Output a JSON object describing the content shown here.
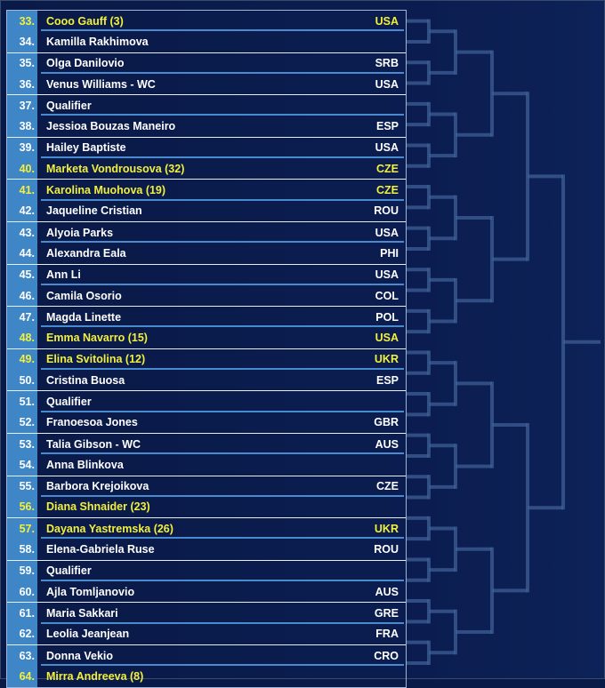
{
  "colors": {
    "background": "#0a1a48",
    "number_box": "#3f86c6",
    "seed_text": "#f2f03c",
    "bracket_line": "#3d5f94"
  },
  "rows": [
    {
      "num": "33.",
      "name": "Cooo Gauff (3)",
      "country": "USA",
      "seeded": true
    },
    {
      "num": "34.",
      "name": "Kamilla Rakhimova",
      "country": "",
      "seeded": false
    },
    {
      "num": "35.",
      "name": "Olga Danilovio",
      "country": "SRB",
      "seeded": false
    },
    {
      "num": "36.",
      "name": "Venus Williams - WC",
      "country": "USA",
      "seeded": false
    },
    {
      "num": "37.",
      "name": "Qualifier",
      "country": "",
      "seeded": false
    },
    {
      "num": "38.",
      "name": "Jessioa Bouzas Maneiro",
      "country": "ESP",
      "seeded": false
    },
    {
      "num": "39.",
      "name": "Hailey Baptiste",
      "country": "USA",
      "seeded": false
    },
    {
      "num": "40.",
      "name": "Marketa Vondrousova (32)",
      "country": "CZE",
      "seeded": true
    },
    {
      "num": "41.",
      "name": "Karolina Muohova (19)",
      "country": "CZE",
      "seeded": true
    },
    {
      "num": "42.",
      "name": "Jaqueline Cristian",
      "country": "ROU",
      "seeded": false
    },
    {
      "num": "43.",
      "name": "Alyoia Parks",
      "country": "USA",
      "seeded": false
    },
    {
      "num": "44.",
      "name": "Alexandra Eala",
      "country": "PHI",
      "seeded": false
    },
    {
      "num": "45.",
      "name": "Ann Li",
      "country": "USA",
      "seeded": false
    },
    {
      "num": "46.",
      "name": "Camila Osorio",
      "country": "COL",
      "seeded": false
    },
    {
      "num": "47.",
      "name": "Magda Linette",
      "country": "POL",
      "seeded": false
    },
    {
      "num": "48.",
      "name": "Emma Navarro (15)",
      "country": "USA",
      "seeded": true
    },
    {
      "num": "49.",
      "name": "Elina Svitolina (12)",
      "country": "UKR",
      "seeded": true
    },
    {
      "num": "50.",
      "name": "Cristina Buosa",
      "country": "ESP",
      "seeded": false
    },
    {
      "num": "51.",
      "name": "Qualifier",
      "country": "",
      "seeded": false
    },
    {
      "num": "52.",
      "name": "Franoesoa Jones",
      "country": "GBR",
      "seeded": false
    },
    {
      "num": "53.",
      "name": "Talia Gibson - WC",
      "country": "AUS",
      "seeded": false
    },
    {
      "num": "54.",
      "name": "Anna Blinkova",
      "country": "",
      "seeded": false
    },
    {
      "num": "55.",
      "name": "Barbora Krejoikova",
      "country": "CZE",
      "seeded": false
    },
    {
      "num": "56.",
      "name": "Diana Shnaider (23)",
      "country": "",
      "seeded": true
    },
    {
      "num": "57.",
      "name": "Dayana Yastremska (26)",
      "country": "UKR",
      "seeded": true
    },
    {
      "num": "58.",
      "name": "Elena-Gabriela Ruse",
      "country": "ROU",
      "seeded": false
    },
    {
      "num": "59.",
      "name": "Qualifier",
      "country": "",
      "seeded": false
    },
    {
      "num": "60.",
      "name": "Ajla Tomljanovio",
      "country": "AUS",
      "seeded": false
    },
    {
      "num": "61.",
      "name": "Maria Sakkari",
      "country": "GRE",
      "seeded": false
    },
    {
      "num": "62.",
      "name": "Leolia Jeanjean",
      "country": "FRA",
      "seeded": false
    },
    {
      "num": "63.",
      "name": "Donna Vekio",
      "country": "CRO",
      "seeded": false
    },
    {
      "num": "64.",
      "name": "Mirra Andreeva (8)",
      "country": "",
      "seeded": true
    }
  ]
}
